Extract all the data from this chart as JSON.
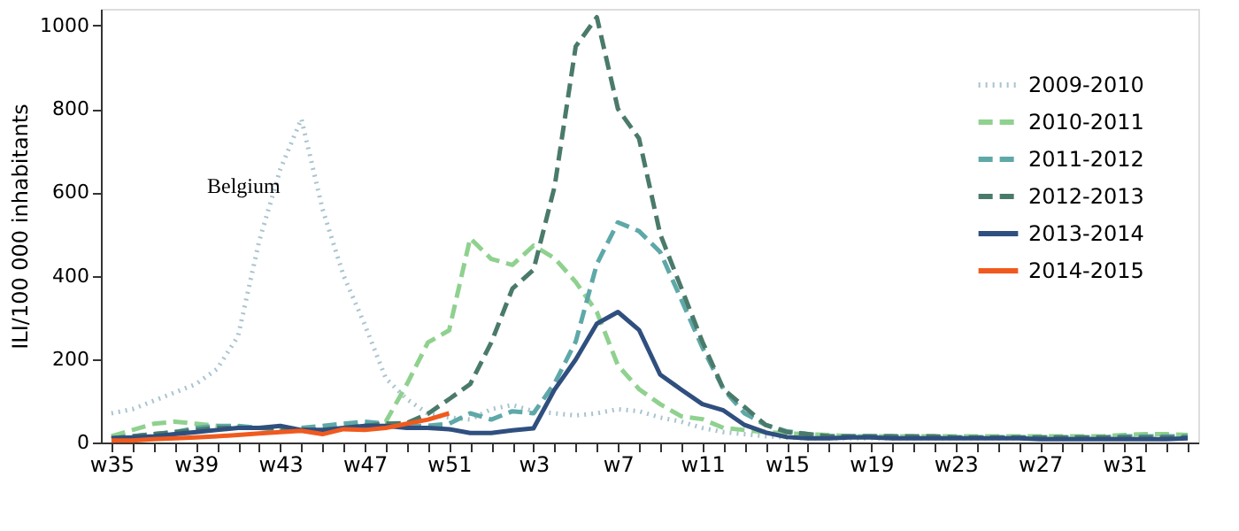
{
  "chart_data": {
    "type": "line",
    "ylabel": "ILI/100 000 inhabitants",
    "annotations": [
      "Belgium"
    ],
    "categories": [
      "w35",
      null,
      null,
      null,
      "w39",
      null,
      null,
      null,
      "w43",
      null,
      null,
      null,
      "w47",
      null,
      null,
      null,
      "w51",
      null,
      null,
      null,
      "w3",
      null,
      null,
      null,
      "w7",
      null,
      null,
      null,
      "w11",
      null,
      null,
      null,
      "w15",
      null,
      null,
      null,
      "w19",
      null,
      null,
      null,
      "w23",
      null,
      null,
      null,
      "w27",
      null,
      null,
      null,
      "w31",
      null,
      null,
      null
    ],
    "ylim": [
      0,
      1040
    ],
    "yticks": [
      0,
      200,
      400,
      600,
      800,
      1000
    ],
    "grid": false,
    "legend": "top right",
    "marker": "none",
    "series": [
      {
        "name": "2009-2010",
        "color": "#a8c4d0",
        "line_style": "dotted",
        "values": [
          70,
          80,
          100,
          120,
          140,
          176,
          255,
          483,
          655,
          776,
          560,
          400,
          283,
          154,
          104,
          69,
          60,
          55,
          80,
          90,
          75,
          70,
          65,
          70,
          80,
          75,
          60,
          50,
          35,
          25,
          20,
          15,
          12,
          10,
          10,
          10,
          10,
          10,
          10,
          10,
          10,
          10,
          10,
          10,
          10,
          10,
          10,
          10,
          10,
          10,
          10,
          10
        ]
      },
      {
        "name": "2010-2011",
        "color": "#8fd18f",
        "line_style": "dashed",
        "values": [
          15,
          30,
          45,
          50,
          45,
          40,
          38,
          35,
          35,
          30,
          30,
          35,
          40,
          50,
          140,
          240,
          269,
          490,
          440,
          426,
          472,
          442,
          385,
          313,
          185,
          128,
          92,
          63,
          56,
          35,
          30,
          25,
          22,
          20,
          18,
          15,
          15,
          15,
          15,
          15,
          15,
          15,
          15,
          15,
          15,
          15,
          15,
          15,
          18,
          20,
          20,
          18
        ]
      },
      {
        "name": "2011-2012",
        "color": "#5fa8a8",
        "line_style": "dashed",
        "values": [
          10,
          15,
          20,
          25,
          35,
          40,
          40,
          35,
          30,
          35,
          40,
          45,
          50,
          45,
          40,
          40,
          45,
          70,
          55,
          75,
          70,
          142,
          242,
          428,
          528,
          507,
          457,
          343,
          228,
          128,
          70,
          42,
          27,
          20,
          15,
          15,
          15,
          15,
          12,
          12,
          12,
          12,
          12,
          12,
          12,
          12,
          12,
          12,
          15,
          15,
          15,
          15
        ]
      },
      {
        "name": "2012-2013",
        "color": "#4a7a6a",
        "line_style": "dashed",
        "values": [
          10,
          15,
          20,
          25,
          30,
          35,
          35,
          35,
          35,
          30,
          30,
          35,
          40,
          45,
          47,
          69,
          104,
          140,
          240,
          369,
          414,
          614,
          950,
          1020,
          800,
          729,
          500,
          371,
          242,
          128,
          85,
          42,
          25,
          20,
          15,
          15,
          15,
          15,
          15,
          15,
          12,
          12,
          12,
          12,
          12,
          12,
          12,
          12,
          12,
          12,
          12,
          12
        ]
      },
      {
        "name": "2013-2014",
        "color": "#2f4f7f",
        "line_style": "solid",
        "values": [
          10,
          12,
          15,
          20,
          25,
          30,
          35,
          35,
          40,
          30,
          30,
          35,
          40,
          40,
          35,
          35,
          32,
          23,
          23,
          29,
          34,
          127,
          199,
          285,
          313,
          270,
          163,
          127,
          92,
          77,
          42,
          24,
          13,
          10,
          10,
          12,
          12,
          10,
          10,
          10,
          10,
          10,
          10,
          10,
          8,
          8,
          8,
          8,
          8,
          8,
          8,
          10
        ]
      },
      {
        "name": "2014-2015",
        "color": "#f05a1e",
        "line_style": "solid",
        "values": [
          5,
          5,
          8,
          10,
          12,
          15,
          18,
          22,
          25,
          28,
          20,
          32,
          30,
          35,
          45,
          55,
          70,
          null,
          null,
          null,
          null,
          null,
          null,
          null,
          null,
          null,
          null,
          null,
          null,
          null,
          null,
          null,
          null,
          null,
          null,
          null,
          null,
          null,
          null,
          null,
          null,
          null,
          null,
          null,
          null,
          null,
          null,
          null,
          null,
          null,
          null,
          null
        ]
      }
    ]
  }
}
